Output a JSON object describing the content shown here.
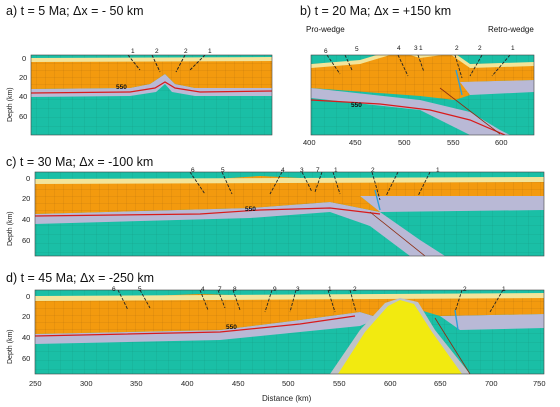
{
  "panels": {
    "a": {
      "title": "a) t = 5 Ma; Δx = - 50 km",
      "faults": [
        "1",
        "2",
        "2",
        "1"
      ],
      "isotherm": "550"
    },
    "b": {
      "title": "b) t = 20 Ma; Δx = +150 km",
      "faults": [
        "6",
        "5",
        "4",
        "3",
        "1",
        "2",
        "2",
        "1"
      ],
      "isotherm": "550",
      "prowedge": "Pro-wedge",
      "retrowedge": "Retro-wedge",
      "xticks": [
        "400",
        "450",
        "500",
        "550",
        "600"
      ]
    },
    "c": {
      "title": "c) t = 30 Ma; Δx = -100 km",
      "faults": [
        "6",
        "5",
        "4",
        "3",
        "7",
        "1",
        "2",
        "1"
      ],
      "isotherm": "550"
    },
    "d": {
      "title": "d) t = 45 Ma; Δx = -250 km",
      "faults": [
        "6",
        "5",
        "4",
        "7",
        "8",
        "9",
        "3",
        "1",
        "2",
        "2",
        "1"
      ],
      "isotherm": "550",
      "xticks": [
        "250",
        "300",
        "350",
        "400",
        "450",
        "500",
        "550",
        "600",
        "650",
        "700",
        "750"
      ]
    }
  },
  "yaxis": {
    "label": "Depth (km)",
    "ticks": [
      "0",
      "20",
      "40",
      "60"
    ]
  },
  "xaxis": {
    "label": "Distance (km)"
  },
  "colors": {
    "upper_crust": "#f39a0e",
    "lower_crust": "#b9b9d6",
    "mantle": "#1abfa6",
    "sediment": "#f2e49a",
    "isotherm": "#d81b1b",
    "intrusion": "#f2ea10"
  }
}
